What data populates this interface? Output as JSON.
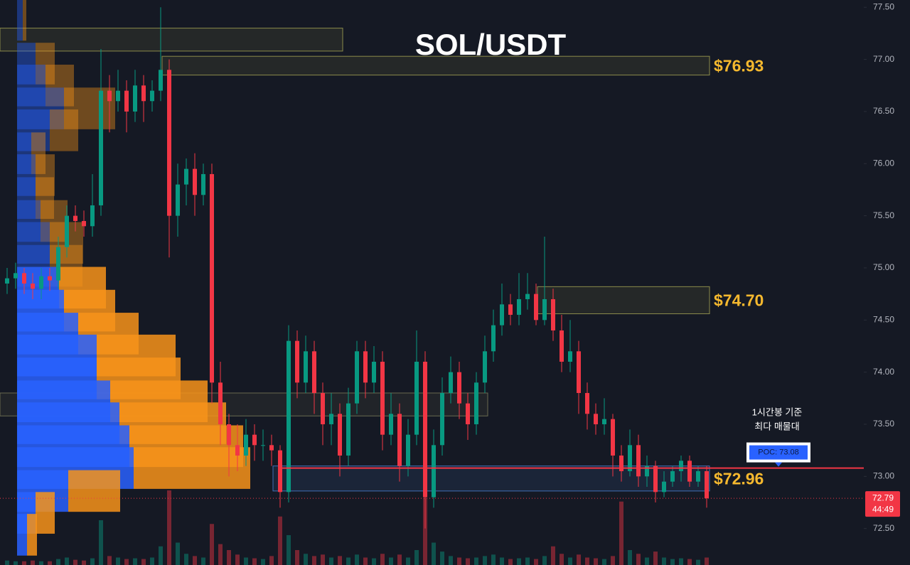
{
  "chart_data": {
    "type": "candlestick",
    "title": "SOL/USDT",
    "ylim": [
      72.15,
      77.57
    ],
    "yticks": [
      {
        "value": 77.5,
        "label": "77.50"
      },
      {
        "value": 77,
        "label": "77.00"
      },
      {
        "value": 76.5,
        "label": "76.50"
      },
      {
        "value": 76,
        "label": "76.00"
      },
      {
        "value": 75.5,
        "label": "75.50"
      },
      {
        "value": 75,
        "label": "75.00"
      },
      {
        "value": 74.5,
        "label": "74.50"
      },
      {
        "value": 74,
        "label": "74.00"
      },
      {
        "value": 73.5,
        "label": "73.50"
      },
      {
        "value": 73,
        "label": "73.00"
      },
      {
        "value": 72.5,
        "label": "72.50"
      }
    ],
    "up_color": "#089981",
    "down_color": "#f23645",
    "open": [
      74.85,
      74.9,
      74.95,
      74.85,
      74.8,
      74.92,
      74.88,
      75.2,
      75.5,
      75.45,
      75.4,
      75.6,
      76.7,
      76.6,
      76.7,
      76.5,
      76.75,
      76.6,
      76.7,
      76.9,
      75.5,
      75.8,
      75.95,
      75.7,
      75.9,
      73.9,
      73.5,
      73.3,
      73.2,
      73.4,
      73.3,
      73.3,
      73.25,
      72.85,
      74.3,
      73.9,
      74.2,
      73.8,
      73.5,
      73.6,
      73.2,
      73.7,
      74.2,
      73.9,
      74.1,
      73.4,
      73.6,
      73.1,
      73.4,
      74.1,
      72.8,
      73.3,
      73.8,
      74.0,
      73.7,
      73.5,
      73.9,
      74.2,
      74.45,
      74.65,
      74.55,
      74.7,
      74.75,
      74.5,
      74.7,
      74.4,
      74.1,
      74.2,
      73.8,
      73.6,
      73.5,
      73.55,
      73.2,
      73.05,
      73.3,
      73.0,
      73.1,
      72.85,
      72.95,
      73.05,
      73.15,
      72.95,
      73.05
    ],
    "high": [
      75.0,
      75.05,
      75.0,
      74.95,
      75.0,
      75.0,
      75.3,
      75.6,
      75.6,
      75.55,
      75.9,
      77.1,
      76.85,
      76.9,
      76.8,
      76.9,
      76.85,
      76.8,
      77.5,
      77.0,
      76.0,
      76.05,
      76.1,
      76.0,
      76.0,
      74.1,
      73.6,
      73.5,
      73.55,
      73.5,
      73.45,
      73.4,
      73.3,
      74.45,
      74.4,
      74.35,
      74.3,
      73.9,
      73.8,
      73.7,
      73.85,
      74.3,
      74.3,
      74.25,
      74.2,
      73.8,
      73.7,
      73.55,
      74.4,
      74.2,
      73.45,
      73.95,
      74.15,
      74.1,
      73.8,
      74.0,
      74.35,
      74.6,
      74.85,
      74.75,
      74.95,
      74.95,
      74.85,
      75.3,
      74.8,
      74.55,
      74.5,
      74.3,
      73.9,
      73.7,
      73.75,
      73.6,
      73.3,
      73.45,
      73.4,
      73.2,
      73.15,
      73.05,
      73.1,
      73.2,
      73.2,
      73.1,
      73.1
    ],
    "low": [
      74.75,
      74.8,
      74.75,
      74.7,
      74.7,
      74.78,
      74.8,
      75.1,
      75.35,
      75.3,
      75.3,
      75.5,
      76.3,
      76.5,
      76.3,
      76.4,
      76.4,
      76.5,
      76.6,
      75.1,
      75.3,
      75.6,
      75.5,
      75.6,
      73.7,
      73.3,
      73.0,
      73.05,
      73.1,
      73.15,
      73.15,
      73.1,
      72.7,
      72.75,
      73.75,
      73.8,
      73.6,
      73.3,
      73.3,
      73.0,
      73.1,
      73.6,
      73.75,
      73.8,
      73.25,
      73.3,
      72.95,
      73.0,
      73.3,
      72.5,
      72.7,
      73.2,
      73.7,
      73.55,
      73.35,
      73.4,
      73.8,
      74.1,
      74.35,
      74.45,
      74.45,
      74.6,
      74.45,
      74.45,
      74.3,
      74.0,
      74.0,
      73.6,
      73.45,
      73.4,
      73.4,
      73.0,
      72.95,
      73.0,
      72.9,
      72.9,
      72.75,
      72.8,
      72.9,
      72.95,
      72.9,
      72.9,
      72.7
    ],
    "close": [
      74.9,
      74.95,
      74.85,
      74.8,
      74.92,
      74.88,
      75.2,
      75.5,
      75.45,
      75.4,
      75.6,
      76.7,
      76.6,
      76.7,
      76.5,
      76.75,
      76.6,
      76.7,
      76.9,
      75.5,
      75.8,
      75.95,
      75.7,
      75.9,
      73.9,
      73.5,
      73.3,
      73.2,
      73.4,
      73.3,
      73.3,
      73.25,
      72.85,
      74.3,
      73.9,
      74.2,
      73.8,
      73.5,
      73.6,
      73.2,
      73.7,
      74.2,
      73.9,
      74.1,
      73.4,
      73.6,
      73.1,
      73.4,
      74.1,
      72.8,
      73.3,
      73.8,
      74.0,
      73.7,
      73.5,
      73.9,
      74.2,
      74.45,
      74.65,
      74.55,
      74.7,
      74.75,
      74.5,
      74.7,
      74.4,
      74.1,
      74.2,
      73.8,
      73.6,
      73.5,
      73.55,
      73.2,
      73.05,
      73.3,
      73.0,
      73.1,
      72.85,
      72.95,
      73.05,
      73.15,
      72.95,
      73.05,
      72.79
    ],
    "volume": [
      6,
      5,
      5,
      6,
      5,
      5,
      8,
      10,
      7,
      6,
      9,
      60,
      12,
      10,
      8,
      9,
      8,
      10,
      25,
      100,
      30,
      15,
      12,
      10,
      55,
      28,
      20,
      14,
      10,
      9,
      8,
      12,
      65,
      40,
      20,
      15,
      12,
      14,
      10,
      12,
      10,
      14,
      10,
      9,
      15,
      10,
      14,
      10,
      20,
      90,
      30,
      18,
      12,
      10,
      9,
      10,
      12,
      14,
      10,
      8,
      9,
      10,
      8,
      12,
      25,
      15,
      10,
      14,
      10,
      9,
      8,
      12,
      85,
      20,
      15,
      10,
      18,
      10,
      8,
      9,
      8,
      7,
      10
    ],
    "volume_profile": {
      "prices": [
        77.38,
        76.96,
        76.75,
        76.53,
        76.32,
        76.1,
        75.89,
        75.67,
        75.45,
        75.24,
        75.02,
        74.81,
        74.59,
        74.37,
        74.16,
        73.94,
        73.72,
        73.51,
        73.29,
        73.08,
        72.86,
        72.65,
        72.44
      ],
      "buy": [
        8,
        26,
        40,
        66,
        46,
        20,
        26,
        26,
        33,
        46,
        46,
        59,
        66,
        86,
        112,
        112,
        131,
        144,
        158,
        164,
        72,
        26,
        14
      ],
      "sell": [
        5,
        27,
        40,
        72,
        40,
        20,
        27,
        26,
        38,
        47,
        46,
        66,
        72,
        85,
        111,
        118,
        137,
        150,
        160,
        164,
        73,
        27,
        14
      ],
      "buy_color": "#2962ff",
      "sell_color": "#f7931a"
    },
    "zones": [
      {
        "low": 77.08,
        "high": 77.3,
        "start": 0,
        "end": 39,
        "color": "#8a8a4a"
      },
      {
        "low": 76.85,
        "high": 77.03,
        "start": 19,
        "end": 82,
        "color": "#8a8a4a",
        "label": "$76.93"
      },
      {
        "low": 74.56,
        "high": 74.82,
        "start": 63,
        "end": 82,
        "color": "#8a8a4a",
        "label": "$74.70"
      },
      {
        "low": 73.58,
        "high": 73.8,
        "start": 0,
        "end": 56,
        "color": "#6a6a50"
      },
      {
        "low": 72.86,
        "high": 73.1,
        "start": 32,
        "end": 82,
        "color": "#3f6fb5",
        "label": "$72.96"
      }
    ],
    "poc": {
      "value": 73.08,
      "label": "POC: 73.08",
      "color": "#f23645"
    },
    "annotation": [
      "1시간봉 기준",
      "최다 매물대"
    ],
    "last_price": {
      "value": 72.79,
      "countdown": "44:49"
    }
  }
}
